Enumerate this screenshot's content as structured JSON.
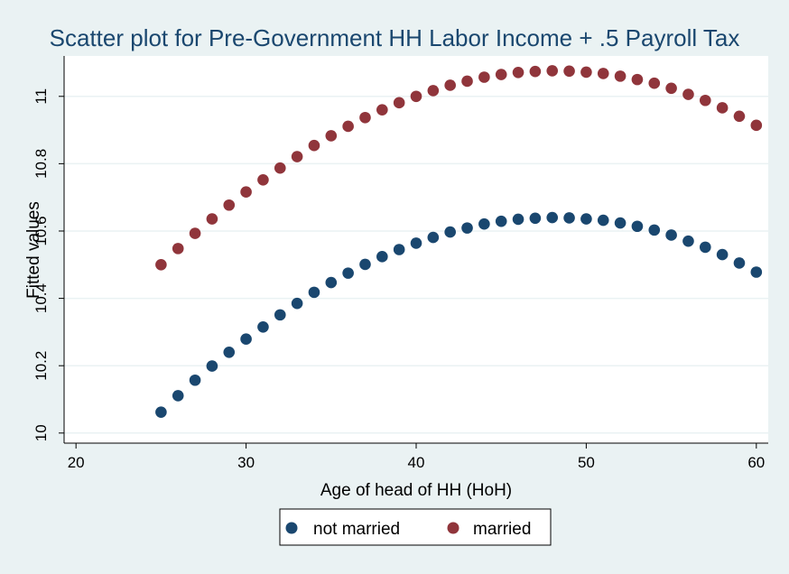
{
  "chart_data": {
    "type": "scatter",
    "title": "Scatter plot for Pre-Government HH Labor Income + .5 Payroll Tax",
    "xlabel": "Age of head of HH (HoH)",
    "ylabel": "Fitted values",
    "xlim": [
      19.3,
      60.7
    ],
    "ylim": [
      9.97,
      11.12
    ],
    "xticks": [
      20,
      30,
      40,
      50,
      60
    ],
    "yticks": [
      10,
      10.2,
      10.4,
      10.6,
      10.8,
      11
    ],
    "xtick_labels": [
      "20",
      "30",
      "40",
      "50",
      "60"
    ],
    "ytick_labels": [
      "10",
      "10.2",
      "10.4",
      "10.6",
      "10.8",
      "11"
    ],
    "grid": true,
    "legend_position": "bottom",
    "series": [
      {
        "name": "not married",
        "color": "#1a476f",
        "x": [
          25,
          26,
          27,
          28,
          29,
          30,
          31,
          32,
          33,
          34,
          35,
          36,
          37,
          38,
          39,
          40,
          41,
          42,
          43,
          44,
          45,
          46,
          47,
          48,
          49,
          50,
          51,
          52,
          53,
          54,
          55,
          56,
          57,
          58,
          59,
          60
        ],
        "y": [
          10.062,
          10.111,
          10.157,
          10.199,
          10.24,
          10.279,
          10.315,
          10.351,
          10.385,
          10.418,
          10.447,
          10.475,
          10.501,
          10.524,
          10.545,
          10.564,
          10.581,
          10.597,
          10.609,
          10.621,
          10.629,
          10.635,
          10.638,
          10.64,
          10.639,
          10.636,
          10.632,
          10.624,
          10.614,
          10.603,
          10.588,
          10.57,
          10.552,
          10.53,
          10.505,
          10.478
        ]
      },
      {
        "name": "married",
        "color": "#90353b",
        "x": [
          25,
          26,
          27,
          28,
          29,
          30,
          31,
          32,
          33,
          34,
          35,
          36,
          37,
          38,
          39,
          40,
          41,
          42,
          43,
          44,
          45,
          46,
          47,
          48,
          49,
          50,
          51,
          52,
          53,
          54,
          55,
          56,
          57,
          58,
          59,
          60
        ],
        "y": [
          10.5,
          10.548,
          10.593,
          10.636,
          10.677,
          10.716,
          10.752,
          10.787,
          10.821,
          10.854,
          10.883,
          10.911,
          10.937,
          10.96,
          10.981,
          11.0,
          11.017,
          11.033,
          11.045,
          11.057,
          11.065,
          11.071,
          11.074,
          11.076,
          11.075,
          11.072,
          11.068,
          11.06,
          11.05,
          11.039,
          11.024,
          11.006,
          10.988,
          10.966,
          10.941,
          10.914
        ]
      }
    ]
  }
}
